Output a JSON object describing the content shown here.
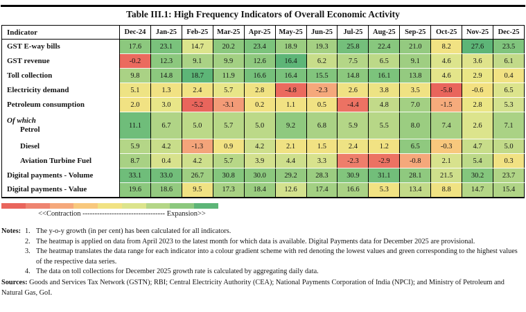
{
  "title": "Table III.1: High Frequency Indicators of Overall Economic Activity",
  "table": {
    "indicator_header": "Indicator",
    "months": [
      "Dec-24",
      "Jan-25",
      "Feb-25",
      "Mar-25",
      "Apr-25",
      "May-25",
      "Jun-25",
      "Jul-25",
      "Aug-25",
      "Sep-25",
      "Oct-25",
      "Nov-25",
      "Dec-25"
    ],
    "rows": [
      {
        "label": "GST E-way bills",
        "values": [
          "17.6",
          "23.1",
          "14.7",
          "20.2",
          "23.4",
          "18.9",
          "19.3",
          "25.8",
          "22.4",
          "21.0",
          "8.2",
          "27.6",
          "23.5"
        ],
        "colors": [
          "#8cc87e",
          "#7ac27c",
          "#dce48c",
          "#8cc87e",
          "#7cc37c",
          "#9bcd81",
          "#a5d083",
          "#74bf7b",
          "#88c77e",
          "#94ca80",
          "#f1e283",
          "#5db577",
          "#80c47d"
        ]
      },
      {
        "label": "GST revenue",
        "values": [
          "-0.2",
          "12.3",
          "9.1",
          "9.9",
          "12.6",
          "16.4",
          "6.2",
          "7.5",
          "6.5",
          "9.1",
          "4.6",
          "3.6",
          "6.1"
        ],
        "colors": [
          "#eb6a5e",
          "#8cc87e",
          "#aad285",
          "#a3d083",
          "#8fc97f",
          "#5db577",
          "#c8dd8a",
          "#b4d687",
          "#bcd988",
          "#9fce82",
          "#dce48c",
          "#dfe38b",
          "#c2da89"
        ]
      },
      {
        "label": "Toll collection",
        "values": [
          "9.8",
          "14.8",
          "18.7",
          "11.9",
          "16.6",
          "16.4",
          "15.5",
          "14.8",
          "16.1",
          "13.8",
          "4.6",
          "2.9",
          "0.4"
        ],
        "colors": [
          "#aad285",
          "#8cc87e",
          "#5db577",
          "#9bcd81",
          "#76c07b",
          "#7ac27c",
          "#82c57d",
          "#8cc87e",
          "#7cc37c",
          "#94ca80",
          "#e4e58a",
          "#eae686",
          "#f1e283"
        ]
      },
      {
        "label": "Electricity demand",
        "values": [
          "5.1",
          "1.3",
          "2.4",
          "5.7",
          "2.8",
          "-4.8",
          "-2.3",
          "2.6",
          "3.8",
          "3.5",
          "-5.8",
          "-0.6",
          "6.5"
        ],
        "colors": [
          "#eee384",
          "#f1e283",
          "#f1e283",
          "#e8e688",
          "#f0e283",
          "#eb6a5e",
          "#f5a87b",
          "#f0e283",
          "#ede384",
          "#f0e283",
          "#e9655c",
          "#f3e181",
          "#dce48c"
        ]
      },
      {
        "label": "Petroleum consumption",
        "values": [
          "2.0",
          "3.0",
          "-5.2",
          "-3.1",
          "0.2",
          "1.1",
          "0.5",
          "-4.4",
          "4.8",
          "7.0",
          "-1.5",
          "2.8",
          "5.3"
        ],
        "colors": [
          "#f1e283",
          "#e8e688",
          "#e9655c",
          "#f39b77",
          "#f2e282",
          "#f1e283",
          "#f1e283",
          "#ec7263",
          "#c2da89",
          "#a3d083",
          "#f6ab7c",
          "#ebe685",
          "#d3e18e"
        ]
      },
      {
        "prefix": "Of which",
        "label": "Petrol",
        "tall": true,
        "values": [
          "11.1",
          "6.7",
          "5.0",
          "5.7",
          "5.0",
          "9.2",
          "6.8",
          "5.9",
          "5.5",
          "8.0",
          "7.4",
          "2.6",
          "7.1"
        ],
        "colors": [
          "#6fbd7a",
          "#b0d486",
          "#bcd988",
          "#b7d787",
          "#bcd988",
          "#8fc97f",
          "#aad285",
          "#b4d687",
          "#b7d787",
          "#9bcd81",
          "#a8d184",
          "#dce48c",
          "#aad285"
        ]
      },
      {
        "label": "Diesel",
        "indent": 1,
        "values": [
          "5.9",
          "4.2",
          "-1.3",
          "0.9",
          "4.2",
          "2.1",
          "1.5",
          "2.4",
          "1.2",
          "6.5",
          "-0.3",
          "4.7",
          "5.0"
        ],
        "colors": [
          "#b4d687",
          "#c8dd8a",
          "#f4a47a",
          "#f1e283",
          "#cedf8c",
          "#f0e283",
          "#f1e283",
          "#eee384",
          "#f1e283",
          "#8fc97f",
          "#f8c87d",
          "#c8dd8a",
          "#c2da89"
        ]
      },
      {
        "label": "Aviation Turbine Fuel",
        "indent": 1,
        "values": [
          "8.7",
          "0.4",
          "4.2",
          "5.7",
          "3.9",
          "4.4",
          "3.3",
          "-2.3",
          "-2.9",
          "-0.8",
          "2.1",
          "5.4",
          "0.3"
        ],
        "colors": [
          "#a8d184",
          "#d8e28d",
          "#cedf8c",
          "#b7d787",
          "#d3e18e",
          "#cedf8c",
          "#d8e28d",
          "#ee7e6b",
          "#ec7263",
          "#f5a87b",
          "#d8e28d",
          "#bcd988",
          "#f1e283"
        ]
      },
      {
        "label": "Digital payments - Volume",
        "values": [
          "33.1",
          "33.0",
          "26.7",
          "30.8",
          "30.0",
          "29.2",
          "28.3",
          "30.9",
          "31.1",
          "28.1",
          "21.5",
          "30.2",
          "23.7"
        ],
        "colors": [
          "#6fbd7a",
          "#72be7a",
          "#9fce82",
          "#84c67d",
          "#8cc87e",
          "#94ca80",
          "#9bcd81",
          "#82c57d",
          "#72be7a",
          "#8fc97f",
          "#cedf8c",
          "#84c67d",
          "#b0d486"
        ]
      },
      {
        "label": "Digital payments - Value",
        "values": [
          "19.6",
          "18.6",
          "9.5",
          "17.3",
          "18.4",
          "12.6",
          "17.4",
          "16.6",
          "5.3",
          "13.4",
          "8.8",
          "14.7",
          "15.4"
        ],
        "colors": [
          "#8cc87e",
          "#94ca80",
          "#f0e283",
          "#a8d184",
          "#9bcd81",
          "#d3e18e",
          "#a3d083",
          "#aad285",
          "#f1e283",
          "#c2da89",
          "#f0e283",
          "#b4d687",
          "#b0d486"
        ]
      }
    ]
  },
  "legend": {
    "colors": [
      "#e9655c",
      "#ee8470",
      "#f5a87b",
      "#f8c87d",
      "#f1e283",
      "#dce48c",
      "#b4d687",
      "#8cc87e",
      "#5db577"
    ],
    "left_label": "<<Contraction",
    "dashes": "----------------------------------",
    "right_label": "Expansion>>"
  },
  "notes": {
    "label": "Notes:",
    "items": [
      {
        "num": "1.",
        "text": "The y-o-y growth (in per cent) has been calculated for all indicators."
      },
      {
        "num": "2.",
        "text": "The heatmap is applied on data from April 2023 to the latest month for which data is available. Digital Payments data for December 2025 are provisional."
      },
      {
        "num": "3.",
        "text": "The heatmap translates the data range for each indicator into a colour gradient scheme with red denoting the lowest values and green corresponding to the highest values of the respective data series."
      },
      {
        "num": "4.",
        "text": "The data on toll collections for December 2025 growth rate is calculated by aggregating daily data."
      }
    ]
  },
  "sources": {
    "label": "Sources:",
    "text": "Goods and Services Tax Network (GSTN); RBI; Central Electricity Authority (CEA); National Payments Corporation of India (NPCI); and Ministry of Petroleum and Natural Gas, GoI."
  },
  "chart_data": {
    "type": "heatmap",
    "title": "Table III.1: High Frequency Indicators of Overall Economic Activity",
    "x": [
      "Dec-24",
      "Jan-25",
      "Feb-25",
      "Mar-25",
      "Apr-25",
      "May-25",
      "Jun-25",
      "Jul-25",
      "Aug-25",
      "Sep-25",
      "Oct-25",
      "Nov-25",
      "Dec-25"
    ],
    "series": [
      {
        "name": "GST E-way bills",
        "values": [
          17.6,
          23.1,
          14.7,
          20.2,
          23.4,
          18.9,
          19.3,
          25.8,
          22.4,
          21.0,
          8.2,
          27.6,
          23.5
        ]
      },
      {
        "name": "GST revenue",
        "values": [
          -0.2,
          12.3,
          9.1,
          9.9,
          12.6,
          16.4,
          6.2,
          7.5,
          6.5,
          9.1,
          4.6,
          3.6,
          6.1
        ]
      },
      {
        "name": "Toll collection",
        "values": [
          9.8,
          14.8,
          18.7,
          11.9,
          16.6,
          16.4,
          15.5,
          14.8,
          16.1,
          13.8,
          4.6,
          2.9,
          0.4
        ]
      },
      {
        "name": "Electricity demand",
        "values": [
          5.1,
          1.3,
          2.4,
          5.7,
          2.8,
          -4.8,
          -2.3,
          2.6,
          3.8,
          3.5,
          -5.8,
          -0.6,
          6.5
        ]
      },
      {
        "name": "Petroleum consumption",
        "values": [
          2.0,
          3.0,
          -5.2,
          -3.1,
          0.2,
          1.1,
          0.5,
          -4.4,
          4.8,
          7.0,
          -1.5,
          2.8,
          5.3
        ]
      },
      {
        "name": "Petrol",
        "values": [
          11.1,
          6.7,
          5.0,
          5.7,
          5.0,
          9.2,
          6.8,
          5.9,
          5.5,
          8.0,
          7.4,
          2.6,
          7.1
        ]
      },
      {
        "name": "Diesel",
        "values": [
          5.9,
          4.2,
          -1.3,
          0.9,
          4.2,
          2.1,
          1.5,
          2.4,
          1.2,
          6.5,
          -0.3,
          4.7,
          5.0
        ]
      },
      {
        "name": "Aviation Turbine Fuel",
        "values": [
          8.7,
          0.4,
          4.2,
          5.7,
          3.9,
          4.4,
          3.3,
          -2.3,
          -2.9,
          -0.8,
          2.1,
          5.4,
          0.3
        ]
      },
      {
        "name": "Digital payments - Volume",
        "values": [
          33.1,
          33.0,
          26.7,
          30.8,
          30.0,
          29.2,
          28.3,
          30.9,
          31.1,
          28.1,
          21.5,
          30.2,
          23.7
        ]
      },
      {
        "name": "Digital payments - Value",
        "values": [
          19.6,
          18.6,
          9.5,
          17.3,
          18.4,
          12.6,
          17.4,
          16.6,
          5.3,
          13.4,
          8.8,
          14.7,
          15.4
        ]
      }
    ],
    "legend_note": "colour gradient: red = lowest values (contraction), green = highest values (expansion), per indicator"
  }
}
